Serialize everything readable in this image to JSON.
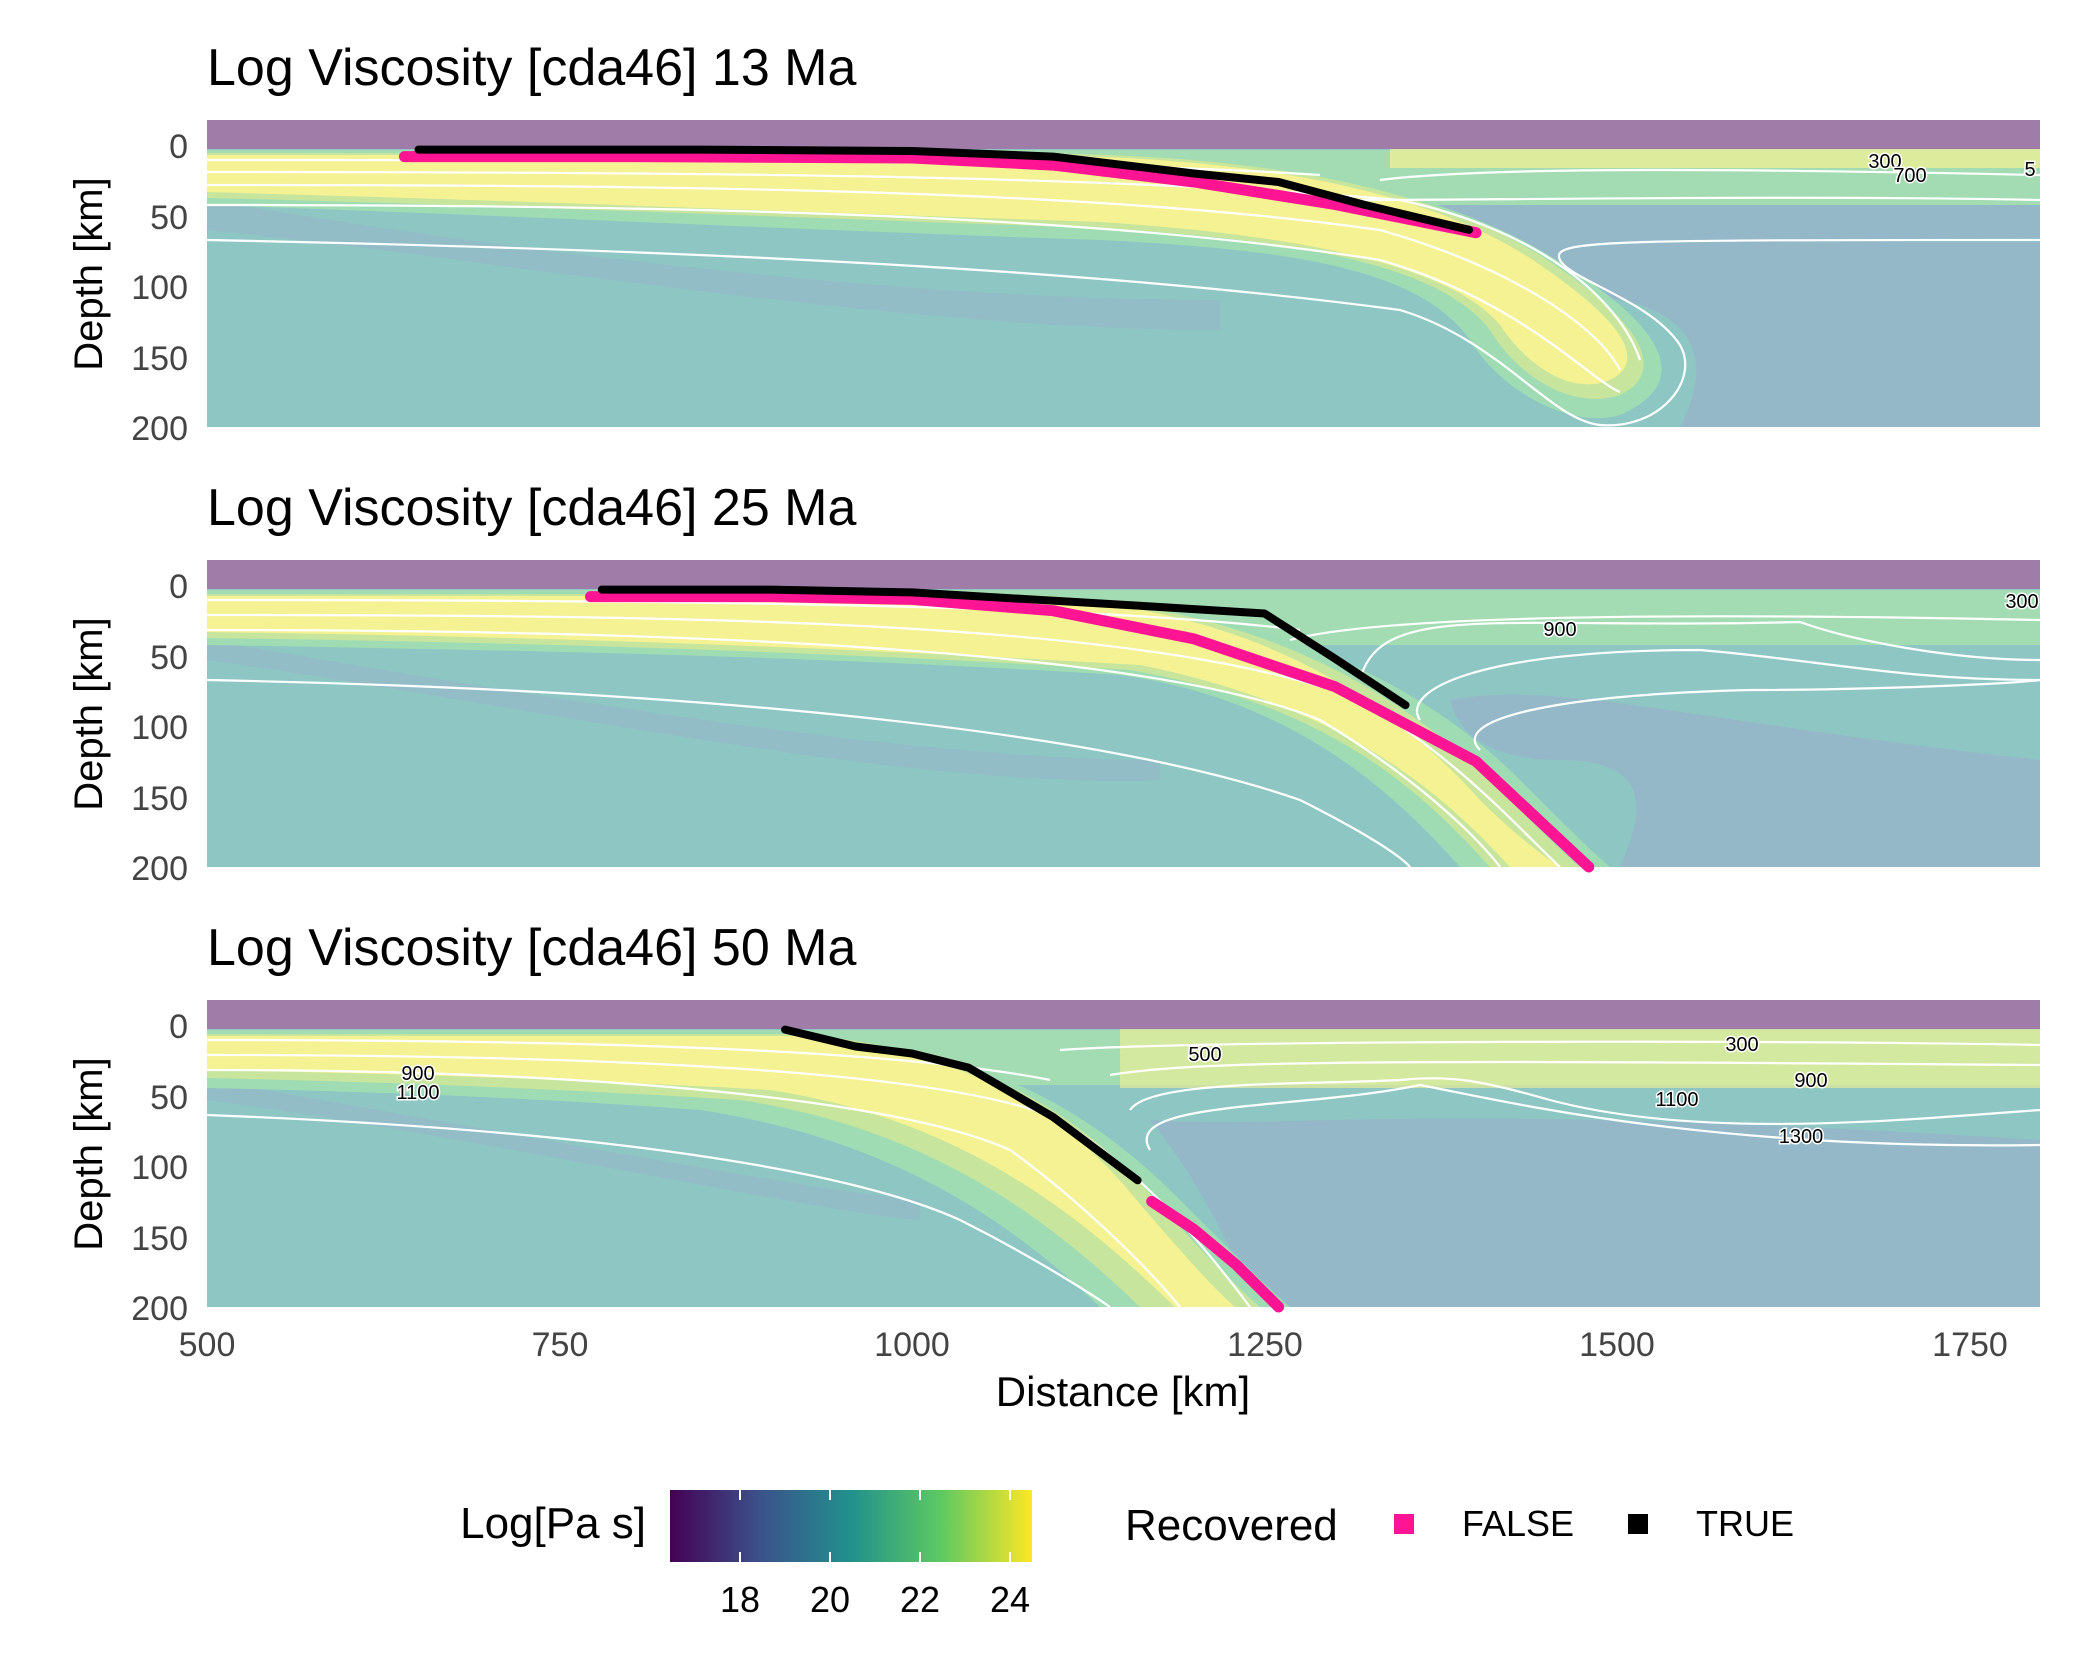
{
  "chart_data": [
    {
      "type": "heatmap",
      "title": "Log Viscosity [cda46] 13 Ma",
      "ylabel": "Depth [km]",
      "yticks": [
        "0",
        "50",
        "100",
        "150",
        "200"
      ],
      "xlim": [
        500,
        1800
      ],
      "ylim": [
        200,
        -18
      ],
      "contour_labels": [
        "300",
        "700",
        "5"
      ],
      "recovered_false": [
        [
          640,
          8
        ],
        [
          800,
          8
        ],
        [
          1000,
          9
        ],
        [
          1100,
          14
        ],
        [
          1200,
          26
        ],
        [
          1300,
          42
        ],
        [
          1400,
          62
        ]
      ],
      "recovered_true": [
        [
          650,
          3
        ],
        [
          850,
          3
        ],
        [
          1000,
          4
        ],
        [
          1100,
          8
        ],
        [
          1200,
          20
        ],
        [
          1260,
          26
        ],
        [
          1320,
          42
        ],
        [
          1395,
          60
        ]
      ]
    },
    {
      "type": "heatmap",
      "title": "Log Viscosity [cda46] 25 Ma",
      "ylabel": "Depth [km]",
      "yticks": [
        "0",
        "50",
        "100",
        "150",
        "200"
      ],
      "xlim": [
        500,
        1800
      ],
      "ylim": [
        200,
        -18
      ],
      "contour_labels": [
        "900",
        "300"
      ],
      "recovered_false": [
        [
          772,
          8
        ],
        [
          900,
          8
        ],
        [
          1000,
          10
        ],
        [
          1100,
          18
        ],
        [
          1200,
          38
        ],
        [
          1300,
          72
        ],
        [
          1400,
          125
        ],
        [
          1480,
          200
        ]
      ],
      "recovered_true": [
        [
          780,
          3
        ],
        [
          900,
          3
        ],
        [
          1000,
          5
        ],
        [
          1170,
          15
        ],
        [
          1250,
          20
        ],
        [
          1300,
          52
        ],
        [
          1350,
          85
        ]
      ]
    },
    {
      "type": "heatmap",
      "title": "Log Viscosity [cda46] 50 Ma",
      "ylabel": "Depth [km]",
      "xlabel": "Distance [km]",
      "yticks": [
        "0",
        "50",
        "100",
        "150",
        "200"
      ],
      "xticks": [
        "500",
        "750",
        "1000",
        "1250",
        "1500",
        "1750"
      ],
      "xlim": [
        500,
        1800
      ],
      "ylim": [
        200,
        -18
      ],
      "contour_labels": [
        "900",
        "1100",
        "500",
        "300",
        "900",
        "1100",
        "1300"
      ],
      "recovered_false": [
        [
          1170,
          125
        ],
        [
          1200,
          145
        ],
        [
          1230,
          170
        ],
        [
          1260,
          200
        ]
      ],
      "recovered_true": [
        [
          910,
          3
        ],
        [
          960,
          15
        ],
        [
          1000,
          20
        ],
        [
          1040,
          30
        ],
        [
          1100,
          65
        ],
        [
          1160,
          110
        ]
      ]
    }
  ],
  "colorbar": {
    "title": "Log[Pa s]",
    "ticks": [
      "18",
      "20",
      "22",
      "24"
    ],
    "range": [
      16.5,
      24.5
    ],
    "colors": [
      "#440154",
      "#3b528b",
      "#21918c",
      "#5ec962",
      "#fde725"
    ]
  },
  "legend": {
    "title": "Recovered",
    "items": [
      {
        "label": "FALSE",
        "color": "#ff1493"
      },
      {
        "label": "TRUE",
        "color": "#000000"
      }
    ]
  },
  "colors": {
    "sticky_air": "#a07ca8",
    "mantle": "#8ec6c3",
    "weak_mantle": "#94b8c8",
    "slab_core": "#f5f293",
    "slab_mid": "#c7e59c",
    "slab_edge": "#9fdcb4",
    "isotherm": "#ffffff"
  }
}
